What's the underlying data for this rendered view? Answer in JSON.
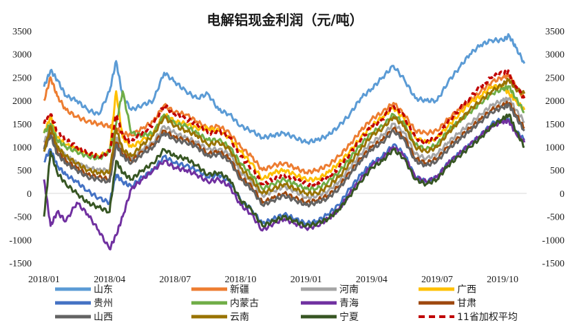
{
  "chart_data": {
    "type": "line",
    "title": "电解铝现金利润（元/吨）",
    "ylim": [
      -1500,
      3500
    ],
    "y_ticks": [
      "3500",
      "3000",
      "2500",
      "2000",
      "1500",
      "1000",
      "500",
      "0",
      "-500",
      "-1000",
      "-1500"
    ],
    "y_tick_values": [
      3500,
      3000,
      2500,
      2000,
      1500,
      1000,
      500,
      0,
      -500,
      -1000,
      -1500
    ],
    "x_range": [
      0,
      22.1
    ],
    "x_ticks": [
      "2018/01",
      "2018/04",
      "2018/07",
      "2018/10",
      "2019/01",
      "2019/04",
      "2019/07",
      "2019/10"
    ],
    "x_tick_values": [
      0,
      3,
      6,
      9,
      12,
      15,
      18,
      21
    ],
    "x_label_note": "x values are months since 2018/01",
    "legend_position": "bottom",
    "grid": false,
    "series": [
      {
        "name": "山东",
        "color": "#5b9bd5",
        "dashed": false,
        "x": [
          0,
          0.3,
          0.6,
          1,
          1.5,
          2,
          2.5,
          3,
          3.3,
          3.6,
          4,
          4.5,
          5,
          5.5,
          6,
          6.5,
          7,
          7.5,
          8,
          8.5,
          9,
          9.5,
          10,
          10.5,
          11,
          11.5,
          12,
          12.5,
          13,
          13.5,
          14,
          14.5,
          15,
          15.5,
          16,
          16.5,
          17,
          17.5,
          18,
          18.5,
          19,
          19.5,
          20,
          20.5,
          21,
          21.3,
          21.6,
          22
        ],
        "y": [
          2300,
          2650,
          2450,
          2100,
          2000,
          1800,
          1700,
          2200,
          2850,
          2100,
          1800,
          1900,
          2000,
          2600,
          2400,
          2200,
          2050,
          2150,
          1800,
          1700,
          1450,
          1350,
          1200,
          1250,
          1300,
          1200,
          1100,
          1150,
          1250,
          1450,
          1700,
          2050,
          2250,
          2500,
          2750,
          2450,
          2050,
          2000,
          2000,
          2400,
          2700,
          3000,
          3200,
          3300,
          3300,
          3400,
          3150,
          2800
        ]
      },
      {
        "name": "新疆",
        "color": "#ed7d31",
        "dashed": false,
        "x": [
          0,
          0.3,
          0.6,
          1,
          1.5,
          2,
          2.5,
          3,
          3.3,
          3.6,
          4,
          4.5,
          5,
          5.5,
          6,
          6.5,
          7,
          7.5,
          8,
          8.5,
          9,
          9.5,
          10,
          10.5,
          11,
          11.5,
          12,
          12.5,
          13,
          13.5,
          14,
          14.5,
          15,
          15.5,
          16,
          16.5,
          17,
          17.5,
          18,
          18.5,
          19,
          19.5,
          20,
          20.5,
          21,
          21.3,
          21.6,
          22
        ],
        "y": [
          2000,
          2500,
          2100,
          1800,
          1650,
          1550,
          1500,
          1450,
          1400,
          1300,
          1250,
          1400,
          1550,
          1900,
          1750,
          1700,
          1550,
          1400,
          1450,
          1300,
          1000,
          800,
          500,
          600,
          650,
          550,
          450,
          500,
          600,
          800,
          1050,
          1350,
          1600,
          1750,
          1950,
          1700,
          1350,
          1300,
          1350,
          1600,
          1800,
          2000,
          2200,
          2400,
          2500,
          2550,
          2300,
          2050
        ]
      },
      {
        "name": "河南",
        "color": "#a5a5a5",
        "dashed": false,
        "x": [
          0,
          0.3,
          0.6,
          1,
          1.5,
          2,
          2.5,
          3,
          3.3,
          3.6,
          4,
          4.5,
          5,
          5.5,
          6,
          6.5,
          7,
          7.5,
          8,
          8.5,
          9,
          9.5,
          10,
          10.5,
          11,
          11.5,
          12,
          12.5,
          13,
          13.5,
          14,
          14.5,
          15,
          15.5,
          16,
          16.5,
          17,
          17.5,
          18,
          18.5,
          19,
          19.5,
          20,
          20.5,
          21,
          21.3,
          21.6,
          22
        ],
        "y": [
          1100,
          1400,
          1000,
          800,
          650,
          550,
          500,
          500,
          1200,
          900,
          750,
          950,
          1100,
          1450,
          1300,
          1200,
          1100,
          950,
          950,
          850,
          450,
          250,
          -50,
          50,
          150,
          50,
          -100,
          -50,
          50,
          250,
          550,
          850,
          1100,
          1250,
          1500,
          1300,
          850,
          750,
          850,
          1100,
          1300,
          1500,
          1700,
          1900,
          2000,
          2050,
          1800,
          1550
        ]
      },
      {
        "name": "广西",
        "color": "#ffc000",
        "dashed": false,
        "x": [
          0,
          0.3,
          0.6,
          1,
          1.5,
          2,
          2.5,
          3,
          3.3,
          3.6,
          4,
          4.5,
          5,
          5.5,
          6,
          6.5,
          7,
          7.5,
          8,
          8.5,
          9,
          9.5,
          10,
          10.5,
          11,
          11.5,
          12,
          12.5,
          13,
          13.5,
          14,
          14.5,
          15,
          15.5,
          16,
          16.5,
          17,
          17.5,
          18,
          18.5,
          19,
          19.5,
          20,
          20.5,
          21,
          21.3,
          21.6,
          22
        ],
        "y": [
          1300,
          1650,
          1200,
          1050,
          950,
          850,
          800,
          900,
          2200,
          1200,
          1000,
          1150,
          1300,
          1700,
          1550,
          1500,
          1400,
          1400,
          1350,
          1200,
          900,
          650,
          300,
          450,
          500,
          400,
          300,
          300,
          450,
          650,
          900,
          1200,
          1450,
          1650,
          1850,
          1600,
          1200,
          1100,
          1200,
          1450,
          1700,
          1950,
          2100,
          2300,
          2300,
          2150,
          2000,
          1800
        ]
      },
      {
        "name": "贵州",
        "color": "#4472c4",
        "dashed": false,
        "x": [
          0,
          0.3,
          0.6,
          1,
          1.5,
          2,
          2.5,
          3,
          3.3,
          3.6,
          4,
          4.5,
          5,
          5.5,
          6,
          6.5,
          7,
          7.5,
          8,
          8.5,
          9,
          9.5,
          10,
          10.5,
          11,
          11.5,
          12,
          12.5,
          13,
          13.5,
          14,
          14.5,
          15,
          15.5,
          16,
          16.5,
          17,
          17.5,
          18,
          18.5,
          19,
          19.5,
          20,
          20.5,
          21,
          21.3,
          21.6,
          22
        ],
        "y": [
          700,
          950,
          600,
          400,
          250,
          50,
          -100,
          -200,
          400,
          250,
          150,
          350,
          500,
          800,
          650,
          600,
          500,
          350,
          400,
          250,
          -150,
          -350,
          -650,
          -550,
          -450,
          -550,
          -650,
          -600,
          -450,
          -250,
          100,
          400,
          650,
          800,
          1050,
          850,
          350,
          250,
          350,
          650,
          850,
          1050,
          1250,
          1500,
          1600,
          1600,
          1350,
          1150
        ]
      },
      {
        "name": "内蒙古",
        "color": "#70ad47",
        "dashed": false,
        "x": [
          0,
          0.3,
          0.6,
          1,
          1.5,
          2,
          2.5,
          3,
          3.3,
          3.6,
          4,
          4.5,
          5,
          5.5,
          6,
          6.5,
          7,
          7.5,
          8,
          8.5,
          9,
          9.5,
          10,
          10.5,
          11,
          11.5,
          12,
          12.5,
          13,
          13.5,
          14,
          14.5,
          15,
          15.5,
          16,
          16.5,
          17,
          17.5,
          18,
          18.5,
          19,
          19.5,
          20,
          20.5,
          21,
          21.3,
          21.6,
          22
        ],
        "y": [
          1300,
          1500,
          1150,
          1000,
          900,
          800,
          750,
          900,
          1500,
          2200,
          1300,
          1250,
          1300,
          1700,
          1500,
          1450,
          1300,
          1150,
          1150,
          1000,
          650,
          400,
          100,
          200,
          300,
          200,
          100,
          100,
          250,
          450,
          750,
          1050,
          1300,
          1450,
          1700,
          1500,
          1050,
          950,
          1050,
          1350,
          1550,
          1750,
          1950,
          2150,
          2250,
          2300,
          2050,
          1750
        ]
      },
      {
        "name": "青海",
        "color": "#7030a0",
        "dashed": false,
        "x": [
          0,
          0.3,
          0.6,
          1,
          1.5,
          2,
          2.5,
          3,
          3.3,
          3.6,
          4,
          4.5,
          5,
          5.5,
          6,
          6.5,
          7,
          7.5,
          8,
          8.5,
          9,
          9.5,
          10,
          10.5,
          11,
          11.5,
          12,
          12.5,
          13,
          13.5,
          14,
          14.5,
          15,
          15.5,
          16,
          16.5,
          17,
          17.5,
          18,
          18.5,
          19,
          19.5,
          20,
          20.5,
          21,
          21.3,
          21.6,
          22
        ],
        "y": [
          300,
          -700,
          -400,
          -600,
          -200,
          -450,
          -800,
          -1200,
          -900,
          -500,
          100,
          300,
          500,
          700,
          550,
          500,
          400,
          250,
          300,
          150,
          -250,
          -450,
          -800,
          -650,
          -550,
          -650,
          -750,
          -700,
          -550,
          -350,
          0,
          300,
          600,
          750,
          1000,
          800,
          350,
          250,
          350,
          650,
          850,
          1050,
          1250,
          1450,
          1550,
          1550,
          1300,
          1100
        ]
      },
      {
        "name": "甘肃",
        "color": "#9e480e",
        "dashed": false,
        "x": [
          0,
          0.3,
          0.6,
          1,
          1.5,
          2,
          2.5,
          3,
          3.3,
          3.6,
          4,
          4.5,
          5,
          5.5,
          6,
          6.5,
          7,
          7.5,
          8,
          8.5,
          9,
          9.5,
          10,
          10.5,
          11,
          11.5,
          12,
          12.5,
          13,
          13.5,
          14,
          14.5,
          15,
          15.5,
          16,
          16.5,
          17,
          17.5,
          18,
          18.5,
          19,
          19.5,
          20,
          20.5,
          21,
          21.3,
          21.6,
          22
        ],
        "y": [
          1000,
          1300,
          900,
          700,
          550,
          400,
          350,
          300,
          1100,
          850,
          700,
          900,
          1050,
          1350,
          1200,
          1150,
          1050,
          850,
          900,
          750,
          350,
          150,
          -200,
          -100,
          0,
          -100,
          -200,
          -150,
          -50,
          150,
          450,
          750,
          1000,
          1150,
          1400,
          1200,
          750,
          650,
          750,
          1000,
          1200,
          1400,
          1600,
          1800,
          1900,
          1950,
          1700,
          1400
        ]
      },
      {
        "name": "山西",
        "color": "#636363",
        "dashed": false,
        "x": [
          0,
          0.3,
          0.6,
          1,
          1.5,
          2,
          2.5,
          3,
          3.3,
          3.6,
          4,
          4.5,
          5,
          5.5,
          6,
          6.5,
          7,
          7.5,
          8,
          8.5,
          9,
          9.5,
          10,
          10.5,
          11,
          11.5,
          12,
          12.5,
          13,
          13.5,
          14,
          14.5,
          15,
          15.5,
          16,
          16.5,
          17,
          17.5,
          18,
          18.5,
          19,
          19.5,
          20,
          20.5,
          21,
          21.3,
          21.6,
          22
        ],
        "y": [
          950,
          1250,
          850,
          650,
          500,
          350,
          300,
          250,
          1050,
          800,
          650,
          850,
          1000,
          1300,
          1150,
          1100,
          1000,
          800,
          850,
          700,
          300,
          100,
          -250,
          -150,
          -50,
          -150,
          -250,
          -200,
          -100,
          100,
          400,
          700,
          950,
          1100,
          1350,
          1150,
          700,
          600,
          700,
          950,
          1150,
          1350,
          1550,
          1750,
          1850,
          1900,
          1650,
          1350
        ]
      },
      {
        "name": "云南",
        "color": "#997300",
        "dashed": false,
        "x": [
          0,
          0.3,
          0.6,
          1,
          1.5,
          2,
          2.5,
          3,
          3.3,
          3.6,
          4,
          4.5,
          5,
          5.5,
          6,
          6.5,
          7,
          7.5,
          8,
          8.5,
          9,
          9.5,
          10,
          10.5,
          11,
          11.5,
          12,
          12.5,
          13,
          13.5,
          14,
          14.5,
          15,
          15.5,
          16,
          16.5,
          17,
          17.5,
          18,
          18.5,
          19,
          19.5,
          20,
          20.5,
          21,
          21.3,
          21.6,
          22
        ],
        "y": [
          900,
          1450,
          1000,
          800,
          650,
          500,
          450,
          450,
          1400,
          950,
          800,
          1050,
          1250,
          1650,
          1450,
          1350,
          1250,
          1050,
          1100,
          950,
          550,
          300,
          0,
          100,
          200,
          100,
          0,
          0,
          150,
          350,
          650,
          950,
          1250,
          1400,
          1650,
          1450,
          1000,
          900,
          1000,
          1300,
          1550,
          1800,
          2000,
          2200,
          2350,
          2450,
          2250,
          2150
        ]
      },
      {
        "name": "宁夏",
        "color": "#375623",
        "dashed": false,
        "x": [
          0,
          0.3,
          0.6,
          1,
          1.5,
          2,
          2.5,
          3,
          3.3,
          3.6,
          4,
          4.5,
          5,
          5.5,
          6,
          6.5,
          7,
          7.5,
          8,
          8.5,
          9,
          9.5,
          10,
          10.5,
          11,
          11.5,
          12,
          12.5,
          13,
          13.5,
          14,
          14.5,
          15,
          15.5,
          16,
          16.5,
          17,
          17.5,
          18,
          18.5,
          19,
          19.5,
          20,
          20.5,
          21,
          21.3,
          21.6,
          22
        ],
        "y": [
          -500,
          900,
          450,
          200,
          0,
          -200,
          -300,
          -400,
          700,
          450,
          300,
          500,
          650,
          950,
          800,
          750,
          600,
          400,
          450,
          300,
          -150,
          -350,
          -700,
          -600,
          -500,
          -600,
          -700,
          -650,
          -550,
          -350,
          -50,
          250,
          550,
          700,
          950,
          750,
          300,
          200,
          300,
          600,
          800,
          1000,
          1200,
          1450,
          1600,
          1700,
          1350,
          1000
        ]
      },
      {
        "name": "11省加权平均",
        "color": "#c00000",
        "dashed": true,
        "x": [
          0,
          0.3,
          0.6,
          1,
          1.5,
          2,
          2.5,
          3,
          3.3,
          3.6,
          4,
          4.5,
          5,
          5.5,
          6,
          6.5,
          7,
          7.5,
          8,
          8.5,
          9,
          9.5,
          10,
          10.5,
          11,
          11.5,
          12,
          12.5,
          13,
          13.5,
          14,
          14.5,
          15,
          15.5,
          16,
          16.5,
          17,
          17.5,
          18,
          18.5,
          19,
          19.5,
          20,
          20.5,
          21,
          21.3,
          21.6,
          22
        ],
        "y": [
          1500,
          1700,
          1350,
          1150,
          1000,
          850,
          800,
          900,
          1700,
          1250,
          1100,
          1300,
          1500,
          1900,
          1700,
          1600,
          1500,
          1300,
          1350,
          1200,
          800,
          550,
          200,
          300,
          400,
          300,
          200,
          200,
          350,
          550,
          850,
          1150,
          1450,
          1600,
          1900,
          1650,
          1200,
          1100,
          1200,
          1550,
          1800,
          2050,
          2300,
          2500,
          2600,
          2600,
          2300,
          2050
        ]
      }
    ]
  }
}
